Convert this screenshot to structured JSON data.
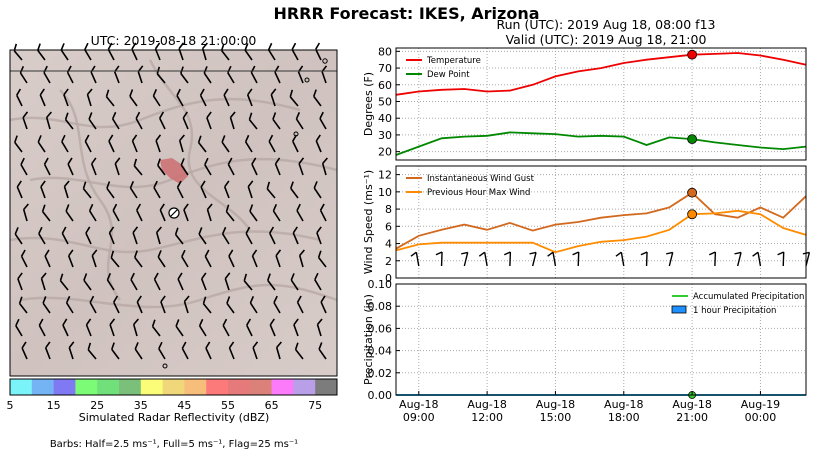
{
  "figure": {
    "title": "HRRR Forecast: IKES, Arizona",
    "map_title": "UTC: 2019-08-18 21:00:00",
    "run_line": "Run (UTC): 2019 Aug 18, 08:00 f13",
    "valid_line": "Valid (UTC): 2019 Aug 18, 21:00",
    "barbs_note": "Barbs: Half=2.5 ms⁻¹, Full=5 ms⁻¹, Flag=25 ms⁻¹"
  },
  "colorbar": {
    "label": "Simulated Radar Reflectivity (dBZ)",
    "ticks": [
      "5",
      "15",
      "25",
      "35",
      "45",
      "55",
      "65",
      "75"
    ],
    "colors": [
      "#7bf4f9",
      "#74b4f4",
      "#7f7af4",
      "#7cfc76",
      "#72e07a",
      "#7ac07a",
      "#fbfc77",
      "#f0d77a",
      "#f7bd7a",
      "#fc7a79",
      "#e67a7a",
      "#dc8179",
      "#fc7bfa",
      "#b99ee8",
      "#7c7c7c"
    ]
  },
  "colors": {
    "temperature": "#ee0000",
    "dew_point": "#008800",
    "gust": "#d2691e",
    "max_wind": "#ff8c00",
    "accum": "#32cd32",
    "hourly": "#1e90ff"
  },
  "chart_data": [
    {
      "type": "line",
      "ylabel": "Degrees (F)",
      "ylim": [
        15,
        82
      ],
      "yticks": [
        "20",
        "30",
        "40",
        "50",
        "60",
        "70",
        "80"
      ],
      "x_hours": [
        8,
        9,
        10,
        11,
        12,
        13,
        14,
        15,
        16,
        17,
        18,
        19,
        20,
        21,
        22,
        23,
        24,
        25,
        26
      ],
      "series": [
        {
          "name": "Temperature",
          "values": [
            54,
            56,
            57,
            57.5,
            56,
            56.5,
            60,
            65,
            68,
            70,
            73,
            75,
            76.5,
            78,
            78.5,
            79,
            77.5,
            75,
            72
          ]
        },
        {
          "name": "Dew Point",
          "values": [
            18,
            23,
            28,
            29,
            29.5,
            31.5,
            31,
            30.5,
            29,
            29.5,
            29,
            24,
            28.5,
            27.5,
            25.5,
            24,
            22.5,
            21.5,
            23
          ]
        }
      ],
      "marker_hour": 21,
      "legend": "top-left",
      "grid": true
    },
    {
      "type": "line",
      "ylabel": "Wind Speed (ms⁻¹)",
      "ylim": [
        0,
        13
      ],
      "yticks": [
        "0",
        "2",
        "4",
        "6",
        "8",
        "10",
        "12"
      ],
      "x_hours": [
        8,
        9,
        10,
        11,
        12,
        13,
        14,
        15,
        16,
        17,
        18,
        19,
        20,
        21,
        22,
        23,
        24,
        25,
        26
      ],
      "series": [
        {
          "name": "Instantaneous Wind Gust",
          "values": [
            3.4,
            4.9,
            5.6,
            6.2,
            5.6,
            6.4,
            5.5,
            6.2,
            6.5,
            7,
            7.3,
            7.5,
            8.2,
            9.9,
            7.4,
            7,
            8.2,
            7,
            9.5
          ]
        },
        {
          "name": "Previous Hour Max Wind",
          "values": [
            3.2,
            3.9,
            4.1,
            4.1,
            4.1,
            4.1,
            4.1,
            3,
            3.7,
            4.2,
            4.4,
            4.8,
            5.6,
            7.4,
            7.5,
            7.8,
            7.4,
            5.8,
            5
          ]
        }
      ],
      "marker_hour": 21,
      "legend": "top-left",
      "grid": true
    },
    {
      "type": "bar",
      "ylabel": "Precipitation (in)",
      "ylim": [
        0,
        0.1
      ],
      "yticks": [
        "0.00",
        "0.02",
        "0.04",
        "0.06",
        "0.08",
        "0.10"
      ],
      "x_hours": [
        8,
        9,
        10,
        11,
        12,
        13,
        14,
        15,
        16,
        17,
        18,
        19,
        20,
        21,
        22,
        23,
        24,
        25,
        26
      ],
      "series": [
        {
          "name": "Accumulated Precipitation",
          "values": [
            0,
            0,
            0,
            0,
            0,
            0,
            0,
            0,
            0,
            0,
            0,
            0,
            0,
            0,
            0,
            0,
            0,
            0,
            0
          ]
        },
        {
          "name": "1 hour Precipitation",
          "values": [
            0,
            0,
            0,
            0,
            0,
            0,
            0,
            0,
            0,
            0,
            0,
            0,
            0,
            0,
            0,
            0,
            0,
            0,
            0
          ]
        }
      ],
      "marker_hour": 21,
      "legend": "top-right",
      "grid": true
    }
  ],
  "x_axis": {
    "hour_range": [
      8,
      26
    ],
    "tick_hours": [
      9,
      12,
      15,
      18,
      21,
      24
    ],
    "tick_labels": [
      [
        "Aug-18",
        "09:00"
      ],
      [
        "Aug-18",
        "12:00"
      ],
      [
        "Aug-18",
        "15:00"
      ],
      [
        "Aug-18",
        "18:00"
      ],
      [
        "Aug-18",
        "21:00"
      ],
      [
        "Aug-19",
        "00:00"
      ]
    ]
  }
}
